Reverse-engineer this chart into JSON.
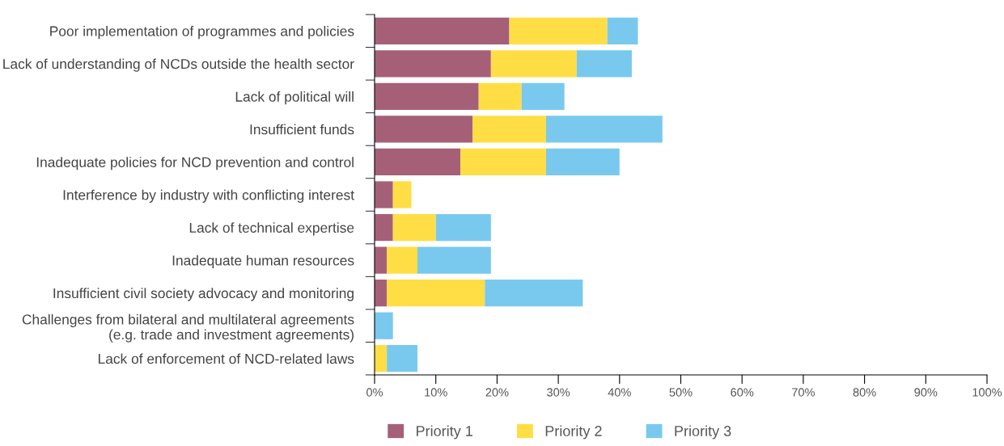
{
  "chart_data": {
    "type": "bar",
    "orientation": "horizontal",
    "stacked": true,
    "categories": [
      "Poor implementation of programmes and policies",
      "Lack of understanding of NCDs outside the health sector",
      "Lack of political will",
      "Insufficient funds",
      "Inadequate policies for NCD prevention and control",
      "Interference by industry with conflicting interest",
      "Lack of technical expertise",
      "Inadequate human resources",
      "Insufficient civil society advocacy and monitoring",
      "Challenges from bilateral and multilateral agreements\n(e.g. trade and investment agreements)",
      "Lack of enforcement of NCD-related laws"
    ],
    "series": [
      {
        "name": "Priority 1",
        "color": "#a56078",
        "values": [
          22,
          19,
          17,
          16,
          14,
          3,
          3,
          2,
          2,
          0,
          0
        ]
      },
      {
        "name": "Priority 2",
        "color": "#fede44",
        "values": [
          16,
          14,
          7,
          12,
          14,
          3,
          7,
          5,
          16,
          0,
          2
        ]
      },
      {
        "name": "Priority 3",
        "color": "#79c9ef",
        "values": [
          5,
          9,
          7,
          19,
          12,
          0,
          9,
          12,
          16,
          3,
          5
        ]
      }
    ],
    "xlim": [
      0,
      100
    ],
    "xticks": [
      {
        "value": 0,
        "label": "0%"
      },
      {
        "value": 10,
        "label": "10%"
      },
      {
        "value": 20,
        "label": "20%"
      },
      {
        "value": 30,
        "label": "30%"
      },
      {
        "value": 40,
        "label": "40%"
      },
      {
        "value": 50,
        "label": "50%"
      },
      {
        "value": 60,
        "label": "60%"
      },
      {
        "value": 70,
        "label": "70%"
      },
      {
        "value": 80,
        "label": "80%"
      },
      {
        "value": 90,
        "label": "90%"
      },
      {
        "value": 100,
        "label": "100%"
      }
    ],
    "grid": false,
    "legend": "bottom"
  }
}
